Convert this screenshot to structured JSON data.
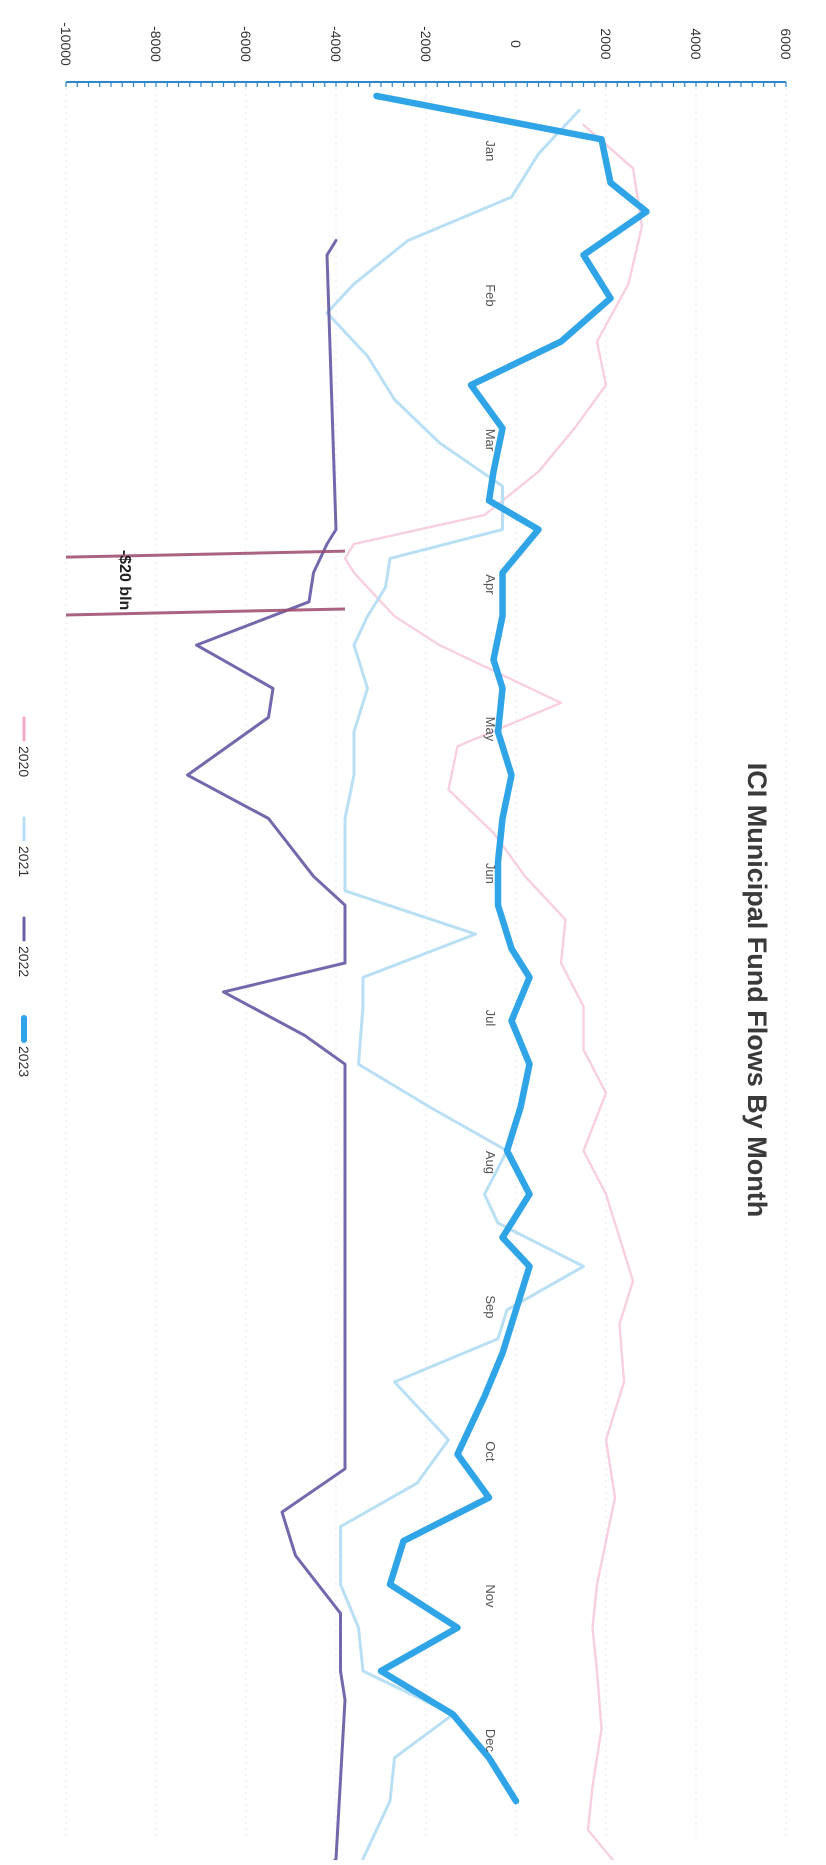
{
  "chart_data": {
    "type": "line",
    "title": "ICI Municipal Fund Flows By Month",
    "ylim": [
      -10000,
      6000
    ],
    "y_ticks": [
      "-10000",
      "-8000",
      "-6000",
      "-4000",
      "-2000",
      "0",
      "2000",
      "4000",
      "6000"
    ],
    "y_tick_values": [
      -10000,
      -8000,
      -6000,
      -4000,
      -2000,
      0,
      2000,
      4000,
      6000
    ],
    "categories": [
      "Jan",
      "Feb",
      "Mar",
      "Apr",
      "May",
      "Jun",
      "Jul",
      "Aug",
      "Sep",
      "Oct",
      "Nov",
      "Dec"
    ],
    "x_domain": [
      0,
      12
    ],
    "legend_position": "bottom",
    "colors": {
      "2020": "#f0a8c8",
      "2021": "#b5ddf4",
      "2022": "#6a60a8",
      "2023": "#2fa4e7",
      "axis": "#2f86c9",
      "grid": "#e8e8f2",
      "annotation_line": "#9c4a6c"
    },
    "series": [
      {
        "name": "2020",
        "points": [
          [
            0.2,
            1500
          ],
          [
            0.5,
            2600
          ],
          [
            0.9,
            2800
          ],
          [
            1.3,
            2500
          ],
          [
            1.7,
            1800
          ],
          [
            2.0,
            2000
          ],
          [
            2.3,
            1300
          ],
          [
            2.6,
            500
          ],
          [
            2.9,
            -700
          ],
          [
            3.1,
            -3600
          ],
          [
            3.2,
            -3800
          ],
          [
            3.3,
            -3600
          ],
          [
            3.6,
            -2700
          ],
          [
            3.8,
            -1700
          ],
          [
            4.2,
            1000
          ],
          [
            4.5,
            -1300
          ],
          [
            4.8,
            -1500
          ],
          [
            5.1,
            -500
          ],
          [
            5.4,
            200
          ],
          [
            5.7,
            1100
          ],
          [
            6.0,
            1000
          ],
          [
            6.3,
            1500
          ],
          [
            6.6,
            1500
          ],
          [
            6.9,
            2000
          ],
          [
            7.3,
            1500
          ],
          [
            7.6,
            2000
          ],
          [
            7.9,
            2300
          ],
          [
            8.2,
            2600
          ],
          [
            8.5,
            2300
          ],
          [
            8.9,
            2400
          ],
          [
            9.3,
            2000
          ],
          [
            9.7,
            2200
          ],
          [
            10.0,
            2000
          ],
          [
            10.3,
            1800
          ],
          [
            10.6,
            1700
          ],
          [
            10.9,
            1800
          ],
          [
            11.3,
            1900
          ],
          [
            11.7,
            1700
          ],
          [
            12.0,
            1600
          ],
          [
            12.3,
            2400
          ],
          [
            12.6,
            3000
          ]
        ]
      },
      {
        "name": "2021",
        "points": [
          [
            0.1,
            1400
          ],
          [
            0.4,
            500
          ],
          [
            0.7,
            -100
          ],
          [
            1.0,
            -2400
          ],
          [
            1.3,
            -3600
          ],
          [
            1.5,
            -4200
          ],
          [
            1.8,
            -3300
          ],
          [
            2.1,
            -2700
          ],
          [
            2.4,
            -1700
          ],
          [
            2.7,
            -300
          ],
          [
            3.0,
            -300
          ],
          [
            3.2,
            -2800
          ],
          [
            3.4,
            -2900
          ],
          [
            3.6,
            -3300
          ],
          [
            3.8,
            -3600
          ],
          [
            4.1,
            -3300
          ],
          [
            4.4,
            -3600
          ],
          [
            4.7,
            -3600
          ],
          [
            5.0,
            -3800
          ],
          [
            5.5,
            -3800
          ],
          [
            5.8,
            -900
          ],
          [
            6.1,
            -3400
          ],
          [
            6.3,
            -3400
          ],
          [
            6.7,
            -3500
          ],
          [
            7.0,
            -1900
          ],
          [
            7.3,
            -200
          ],
          [
            7.6,
            -700
          ],
          [
            7.8,
            -400
          ],
          [
            8.1,
            1500
          ],
          [
            8.4,
            -200
          ],
          [
            8.6,
            -400
          ],
          [
            8.9,
            -2700
          ],
          [
            9.3,
            -1500
          ],
          [
            9.6,
            -2200
          ],
          [
            9.9,
            -3900
          ],
          [
            10.3,
            -3900
          ],
          [
            10.6,
            -3500
          ],
          [
            10.9,
            -3400
          ],
          [
            11.2,
            -1400
          ],
          [
            11.5,
            -2700
          ],
          [
            11.8,
            -2800
          ],
          [
            12.2,
            -3400
          ],
          [
            12.5,
            -3800
          ]
        ]
      },
      {
        "name": "2022",
        "points": [
          [
            1.0,
            -4000
          ],
          [
            1.1,
            -4200
          ],
          [
            3.0,
            -4000
          ],
          [
            3.1,
            -4200
          ],
          [
            3.3,
            -4500
          ],
          [
            3.5,
            -4600
          ],
          [
            3.8,
            -7100
          ],
          [
            4.1,
            -5400
          ],
          [
            4.3,
            -5500
          ],
          [
            4.7,
            -7300
          ],
          [
            5.0,
            -5500
          ],
          [
            5.4,
            -4500
          ],
          [
            5.6,
            -3800
          ],
          [
            6.0,
            -3800
          ],
          [
            6.2,
            -6500
          ],
          [
            6.5,
            -4700
          ],
          [
            6.7,
            -3800
          ],
          [
            9.5,
            -3800
          ],
          [
            9.8,
            -5200
          ],
          [
            10.1,
            -4900
          ],
          [
            10.5,
            -3900
          ],
          [
            10.9,
            -3900
          ],
          [
            11.1,
            -3800
          ],
          [
            12.2,
            -4000
          ],
          [
            12.3,
            -4300
          ],
          [
            12.5,
            -3700
          ]
        ]
      },
      {
        "name": "2023",
        "points": [
          [
            0.0,
            -3100
          ],
          [
            0.3,
            1900
          ],
          [
            0.6,
            2100
          ],
          [
            0.8,
            2900
          ],
          [
            1.1,
            1500
          ],
          [
            1.4,
            2100
          ],
          [
            1.7,
            1000
          ],
          [
            2.0,
            -1000
          ],
          [
            2.3,
            -300
          ],
          [
            2.6,
            -500
          ],
          [
            2.8,
            -600
          ],
          [
            3.0,
            500
          ],
          [
            3.3,
            -300
          ],
          [
            3.6,
            -300
          ],
          [
            3.9,
            -500
          ],
          [
            4.1,
            -300
          ],
          [
            4.4,
            -400
          ],
          [
            4.7,
            -100
          ],
          [
            5.0,
            -300
          ],
          [
            5.3,
            -400
          ],
          [
            5.6,
            -400
          ],
          [
            5.9,
            -100
          ],
          [
            6.1,
            300
          ],
          [
            6.4,
            -100
          ],
          [
            6.7,
            300
          ],
          [
            7.0,
            100
          ],
          [
            7.3,
            -200
          ],
          [
            7.6,
            300
          ],
          [
            7.9,
            -300
          ],
          [
            8.1,
            300
          ],
          [
            8.4,
            0
          ],
          [
            8.7,
            -300
          ],
          [
            9.0,
            -700
          ],
          [
            9.4,
            -1300
          ],
          [
            9.7,
            -600
          ],
          [
            10.0,
            -2500
          ],
          [
            10.3,
            -2800
          ],
          [
            10.6,
            -1300
          ],
          [
            10.9,
            -3000
          ],
          [
            11.2,
            -1400
          ],
          [
            11.5,
            -600
          ],
          [
            11.8,
            0
          ]
        ]
      }
    ],
    "annotation": {
      "label": "-$20 bln",
      "year": "2020",
      "x_range": [
        3.15,
        3.55
      ]
    }
  }
}
